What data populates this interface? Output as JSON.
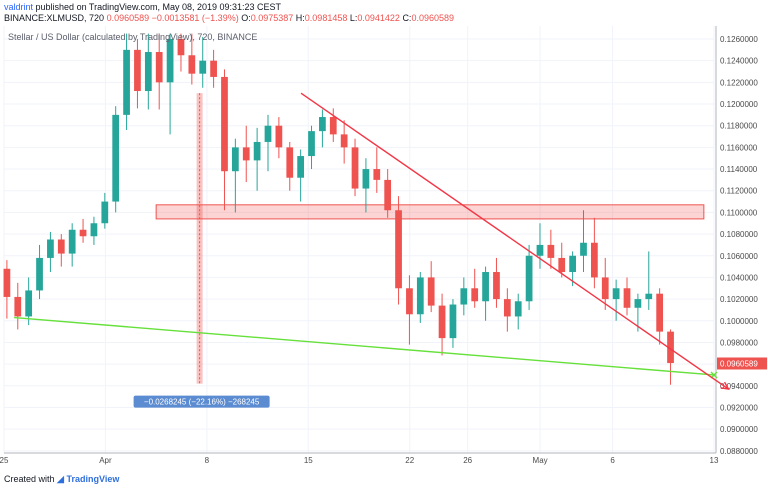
{
  "header": {
    "user": "valdrint",
    "published_text": "published on TradingView.com, May 08, 2019 09:31:23 CEST",
    "ohlc_line": {
      "symbol": "BINANCE:XLMUSD, 720",
      "last": "0.0960589",
      "change": "−0.0013581 (−1.39%)",
      "open_label": "O:",
      "open": "0.0975387",
      "high_label": "H:",
      "high": "0.0981458",
      "low_label": "L:",
      "low": "0.0941422",
      "close_label": "C:",
      "close": "0.0960589"
    }
  },
  "chart_title": "Stellar / US Dollar (calculated by TradingView), 720, BINANCE",
  "footer": {
    "created_with": "Created with",
    "brand": "TradingView"
  },
  "chart_data": {
    "type": "candlestick",
    "y_range": [
      0.0878,
      0.1272
    ],
    "y_ticks": [
      0.126,
      0.124,
      0.122,
      0.12,
      0.118,
      0.116,
      0.114,
      0.112,
      0.11,
      0.108,
      0.106,
      0.104,
      0.102,
      0.1,
      0.098,
      0.096,
      0.094,
      0.092,
      0.09,
      0.088
    ],
    "y_tick_labels": [
      "0.1260000",
      "0.1240000",
      "0.1220000",
      "0.1200000",
      "0.1180000",
      "0.1160000",
      "0.1140000",
      "0.1120000",
      "0.1100000",
      "0.1080000",
      "0.1060000",
      "0.1040000",
      "0.1020000",
      "0.1000000",
      "0.0980000",
      "0.0960000",
      "0.0940000",
      "0.0920000",
      "0.0900000",
      "0.0880000"
    ],
    "x_range": [
      -1,
      48
    ],
    "x_ticks": [
      {
        "x": -1,
        "label": "25"
      },
      {
        "x": 6,
        "label": "Apr"
      },
      {
        "x": 13,
        "label": "8"
      },
      {
        "x": 20,
        "label": "15"
      },
      {
        "x": 27,
        "label": "22"
      },
      {
        "x": 31,
        "label": "26"
      },
      {
        "x": 36,
        "label": "May"
      },
      {
        "x": 41,
        "label": "6"
      },
      {
        "x": 48,
        "label": "13"
      }
    ],
    "last_price": 0.0960589,
    "last_price_label": "0.0960589",
    "up_color": "#26a69a",
    "down_color": "#ef5350",
    "candles": [
      [
        0.1048,
        0.1056,
        0.1002,
        0.1022
      ],
      [
        0.1022,
        0.1035,
        0.0992,
        0.1004
      ],
      [
        0.1004,
        0.104,
        0.0996,
        0.1028
      ],
      [
        0.1028,
        0.107,
        0.102,
        0.1058
      ],
      [
        0.1058,
        0.1082,
        0.1045,
        0.1075
      ],
      [
        0.1075,
        0.108,
        0.105,
        0.1062
      ],
      [
        0.1062,
        0.109,
        0.105,
        0.1084
      ],
      [
        0.1084,
        0.1094,
        0.1072,
        0.1078
      ],
      [
        0.1078,
        0.1096,
        0.107,
        0.109
      ],
      [
        0.109,
        0.1118,
        0.1085,
        0.111
      ],
      [
        0.111,
        0.1198,
        0.11,
        0.119
      ],
      [
        0.119,
        0.1265,
        0.1176,
        0.125
      ],
      [
        0.125,
        0.126,
        0.1196,
        0.1212
      ],
      [
        0.1212,
        0.1265,
        0.1195,
        0.1248
      ],
      [
        0.1248,
        0.1265,
        0.1195,
        0.122
      ],
      [
        0.122,
        0.1265,
        0.1172,
        0.126
      ],
      [
        0.126,
        0.1265,
        0.123,
        0.1245
      ],
      [
        0.1245,
        0.1265,
        0.1218,
        0.1228
      ],
      [
        0.1228,
        0.1262,
        0.1215,
        0.124
      ],
      [
        0.124,
        0.125,
        0.1215,
        0.1225
      ],
      [
        0.1225,
        0.1232,
        0.1102,
        0.1138
      ],
      [
        0.1138,
        0.1168,
        0.11,
        0.116
      ],
      [
        0.116,
        0.118,
        0.1128,
        0.1148
      ],
      [
        0.1148,
        0.1178,
        0.112,
        0.1165
      ],
      [
        0.1165,
        0.119,
        0.1138,
        0.118
      ],
      [
        0.118,
        0.1188,
        0.115,
        0.116
      ],
      [
        0.116,
        0.1165,
        0.112,
        0.1132
      ],
      [
        0.1132,
        0.1158,
        0.111,
        0.1152
      ],
      [
        0.1152,
        0.118,
        0.114,
        0.1175
      ],
      [
        0.1175,
        0.1195,
        0.116,
        0.1188
      ],
      [
        0.1188,
        0.1196,
        0.1165,
        0.1172
      ],
      [
        0.1172,
        0.1185,
        0.1145,
        0.116
      ],
      [
        0.116,
        0.1168,
        0.1115,
        0.1122
      ],
      [
        0.1122,
        0.115,
        0.11,
        0.114
      ],
      [
        0.114,
        0.116,
        0.1118,
        0.113
      ],
      [
        0.113,
        0.114,
        0.1095,
        0.1102
      ],
      [
        0.1102,
        0.1115,
        0.1015,
        0.103
      ],
      [
        0.103,
        0.1042,
        0.0978,
        0.1006
      ],
      [
        0.1006,
        0.1045,
        0.0998,
        0.104
      ],
      [
        0.104,
        0.1055,
        0.1008,
        0.1014
      ],
      [
        0.1014,
        0.1025,
        0.0968,
        0.0984
      ],
      [
        0.0984,
        0.102,
        0.0975,
        0.1015
      ],
      [
        0.1015,
        0.104,
        0.1005,
        0.103
      ],
      [
        0.103,
        0.1048,
        0.1012,
        0.1018
      ],
      [
        0.1018,
        0.105,
        0.1,
        0.1045
      ],
      [
        0.1045,
        0.1058,
        0.1012,
        0.102
      ],
      [
        0.102,
        0.103,
        0.099,
        0.1004
      ],
      [
        0.1004,
        0.1025,
        0.0992,
        0.1018
      ],
      [
        0.1018,
        0.107,
        0.101,
        0.106
      ],
      [
        0.106,
        0.109,
        0.1048,
        0.107
      ],
      [
        0.107,
        0.1084,
        0.1048,
        0.1058
      ],
      [
        0.1058,
        0.1072,
        0.104,
        0.1045
      ],
      [
        0.1045,
        0.1064,
        0.1032,
        0.106
      ],
      [
        0.106,
        0.1102,
        0.1045,
        0.1072
      ],
      [
        0.1072,
        0.1095,
        0.103,
        0.104
      ],
      [
        0.104,
        0.1058,
        0.101,
        0.102
      ],
      [
        0.102,
        0.1038,
        0.1,
        0.103
      ],
      [
        0.103,
        0.104,
        0.1005,
        0.1012
      ],
      [
        0.1012,
        0.1025,
        0.099,
        0.102
      ],
      [
        0.102,
        0.1064,
        0.101,
        0.1025
      ],
      [
        0.1025,
        0.103,
        0.0978,
        0.099
      ],
      [
        0.099,
        0.0992,
        0.0941,
        0.0961
      ]
    ],
    "annotations": {
      "resistance_zone": {
        "x_from": 9.5,
        "x_to": 47.3,
        "y_from": 0.1094,
        "y_to": 0.1107
      },
      "downtrend_line": {
        "from": [
          19.5,
          0.121
        ],
        "to": [
          49.0,
          0.0937
        ],
        "color": "#f23645"
      },
      "support_line": {
        "from": [
          -0.3,
          0.1003
        ],
        "to": [
          48.0,
          0.095
        ],
        "color": "#66e03a"
      },
      "measure_bar": {
        "x": 12.5,
        "y_from": 0.121,
        "y_to": 0.0942,
        "label": "−0.0268245 (−22.16%) −268245"
      }
    }
  }
}
